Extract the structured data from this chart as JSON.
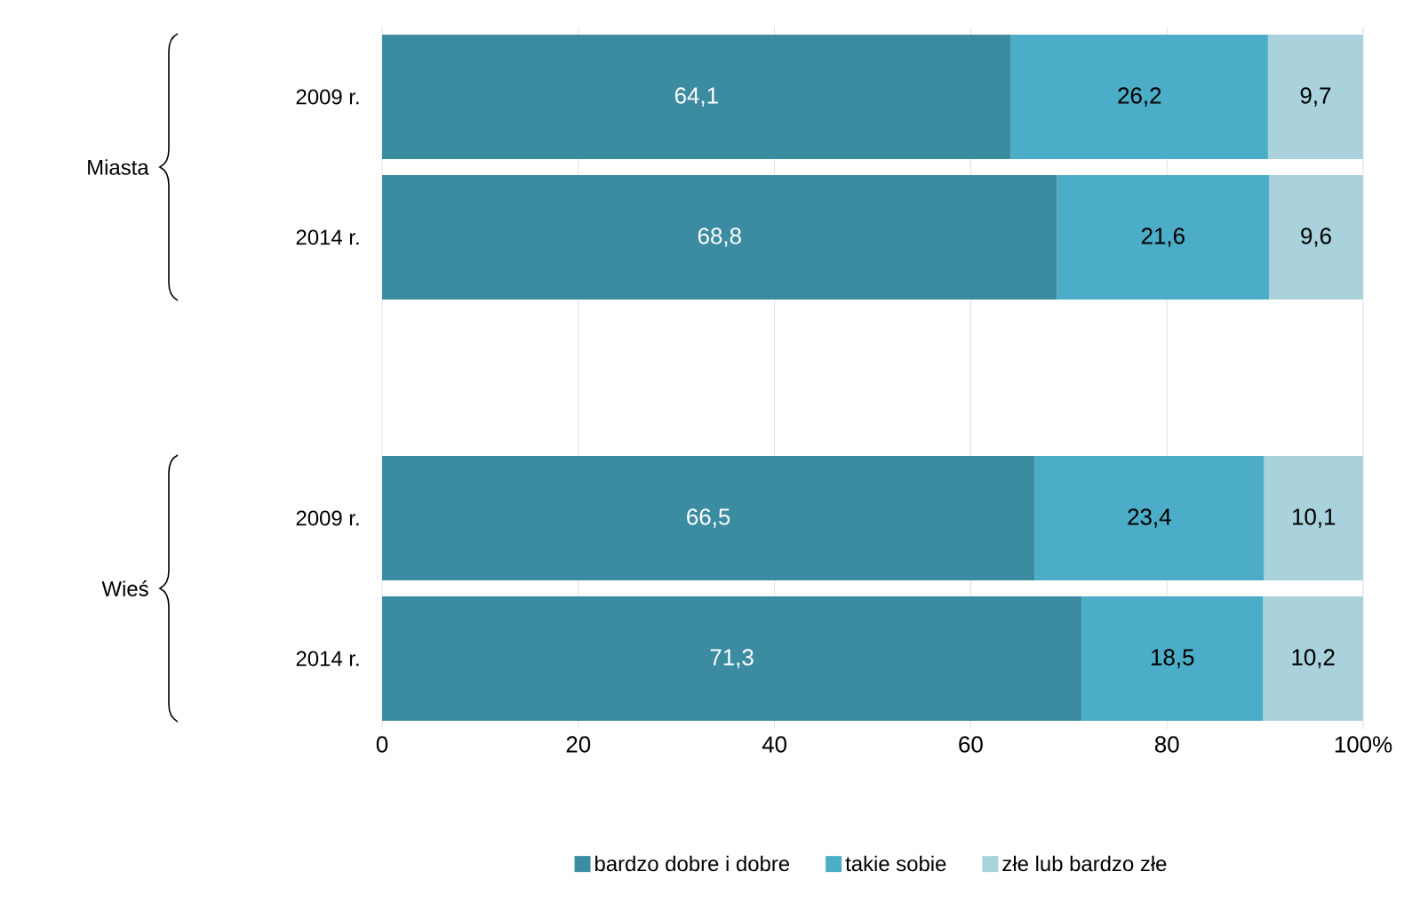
{
  "chart_data": {
    "type": "bar",
    "orientation": "horizontal",
    "stacked": true,
    "categories": [
      "2009 r.",
      "2014 r.",
      null,
      "2009 r.",
      "2014 r."
    ],
    "series": [
      {
        "name": "bardzo dobre i dobre",
        "color": "#3b8ba1",
        "values": [
          64.1,
          68.8,
          null,
          66.5,
          71.3
        ],
        "value_labels": [
          "64,1",
          "68,8",
          null,
          "66,5",
          "71,3"
        ]
      },
      {
        "name": "takie sobie",
        "color": "#4badc7",
        "values": [
          26.2,
          21.6,
          null,
          23.4,
          18.5
        ],
        "value_labels": [
          "26,2",
          "21,6",
          null,
          "23,4",
          "18,5"
        ]
      },
      {
        "name": "złe lub bardzo złe",
        "color": "#a9d2dd",
        "values": [
          9.7,
          9.6,
          null,
          10.1,
          10.2
        ],
        "value_labels": [
          "9,7",
          "9,6",
          null,
          "10,1",
          "10,2"
        ]
      }
    ],
    "xlim": [
      0,
      100
    ],
    "xticks": [
      0,
      20,
      40,
      60,
      80,
      {
        "value": 100,
        "label": "100%"
      }
    ],
    "grid": "x",
    "legend": "bottom",
    "annotations": [
      "Miasta",
      "Wieś"
    ]
  }
}
